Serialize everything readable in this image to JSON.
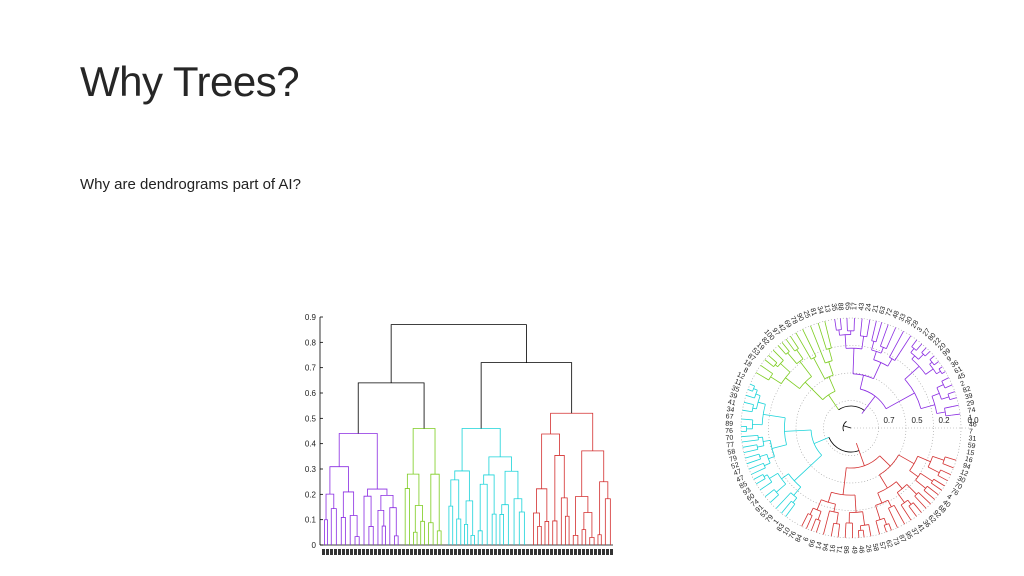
{
  "slide": {
    "title": "Why Trees?",
    "body": "Why are dendrograms part of AI?"
  },
  "chart_data": [
    {
      "type": "dendrogram",
      "orientation": "vertical",
      "ylim": [
        0,
        0.9
      ],
      "yticks": [
        "0",
        "0.1",
        "0.2",
        "0.3",
        "0.4",
        "0.5",
        "0.6",
        "0.7",
        "0.8",
        "0.9"
      ],
      "grid": false,
      "clusters": [
        {
          "color": "#8a2be2",
          "merge_height": 0.44
        },
        {
          "color": "#7ccc1f",
          "merge_height": 0.46
        },
        {
          "color": "#19d3d9",
          "merge_height": 0.46
        },
        {
          "color": "#d32f2f",
          "merge_height": 0.52
        }
      ],
      "upper_merges": [
        0.64,
        0.72,
        0.87
      ],
      "link_color": "#000000"
    },
    {
      "type": "polar-dendrogram",
      "radial_ticks": [
        "0.7",
        "0.5",
        "0.2",
        "0.0"
      ],
      "grid": "dotted circles",
      "clusters": [
        {
          "color": "#8a2be2"
        },
        {
          "color": "#7ccc1f"
        },
        {
          "color": "#19d3d9"
        },
        {
          "color": "#d32f2f"
        }
      ],
      "leaf_labels": [
        "88",
        "65",
        "17",
        "43",
        "24",
        "21",
        "63",
        "72",
        "48",
        "33",
        "30",
        "28",
        "3",
        "27",
        "80",
        "22",
        "20",
        "99",
        "9",
        "36",
        "61",
        "45",
        "2",
        "82",
        "39",
        "29",
        "74",
        "1",
        "46",
        "7",
        "31",
        "59",
        "15",
        "16",
        "94",
        "12",
        "30",
        "70",
        "76",
        "4",
        "40",
        "68",
        "92",
        "62",
        "36",
        "41",
        "37",
        "95",
        "87",
        "73",
        "62",
        "57",
        "58",
        "26",
        "46",
        "49",
        "98",
        "71",
        "16",
        "94",
        "14",
        "66",
        "6",
        "84",
        "76",
        "10",
        "83",
        "1",
        "79",
        "53",
        "91",
        "74",
        "60",
        "93",
        "85",
        "47",
        "47",
        "52",
        "79",
        "58",
        "77",
        "70",
        "76",
        "89",
        "67",
        "34",
        "41",
        "39",
        "35",
        "11",
        "12",
        "8",
        "18",
        "87",
        "53",
        "19",
        "82",
        "100",
        "97",
        "42",
        "69",
        "78",
        "90",
        "25",
        "81",
        "34",
        "13",
        "35"
      ]
    }
  ]
}
